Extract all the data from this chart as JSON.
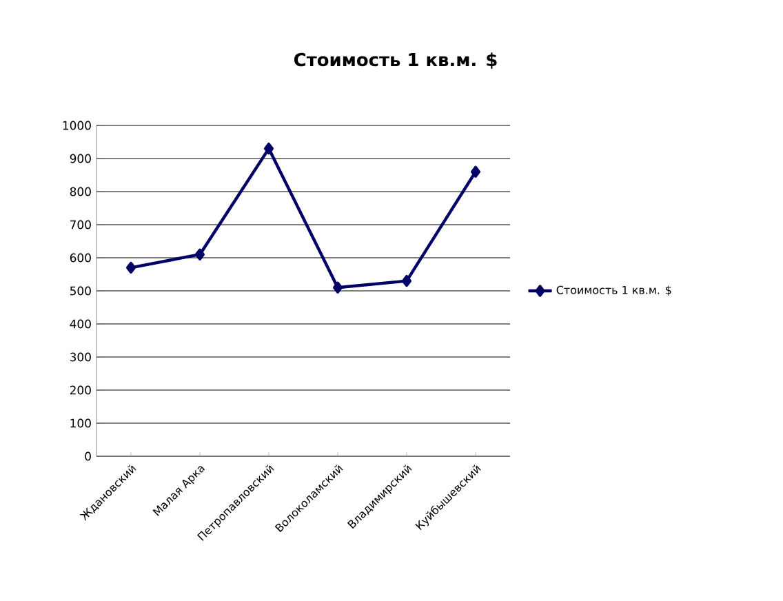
{
  "chart_data": {
    "type": "line",
    "title": "Стоимость 1 кв.м. $",
    "categories": [
      "Ждановский",
      "Малая Арка",
      "Петропавловский",
      "Волоколамский",
      "Владимирский",
      "Куйбышевский"
    ],
    "series": [
      {
        "name": "Стоимость 1 кв.м. $",
        "color": "#000066",
        "values": [
          570,
          610,
          930,
          510,
          530,
          860
        ]
      }
    ],
    "ylim": [
      0,
      1000
    ],
    "yticks": [
      0,
      100,
      200,
      300,
      400,
      500,
      600,
      700,
      800,
      900,
      1000
    ],
    "grid": "y",
    "legend": "right",
    "marker": "diamond",
    "line_style": "solid"
  }
}
